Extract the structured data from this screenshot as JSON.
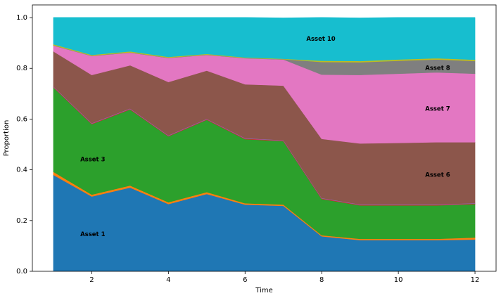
{
  "chart_data": {
    "type": "area",
    "stacked": true,
    "x": [
      1,
      2,
      3,
      4,
      5,
      6,
      7,
      8,
      9,
      10,
      11,
      12
    ],
    "xlabel": "Time",
    "ylabel": "Proportion",
    "xlim": [
      0.45,
      12.55
    ],
    "ylim": [
      0,
      1.05
    ],
    "xticks": [
      2,
      4,
      6,
      8,
      10,
      12
    ],
    "yticks": [
      0.0,
      0.2,
      0.4,
      0.6,
      0.8,
      1.0
    ],
    "xtick_labels": [
      "2",
      "4",
      "6",
      "8",
      "10",
      "12"
    ],
    "ytick_labels": [
      "0.0",
      "0.2",
      "0.4",
      "0.6",
      "0.8",
      "1.0"
    ],
    "grid": false,
    "series": [
      {
        "color": "#1f77b4",
        "values": [
          0.38,
          0.295,
          0.33,
          0.265,
          0.305,
          0.263,
          0.258,
          0.138,
          0.123,
          0.123,
          0.123,
          0.125
        ]
      },
      {
        "color": "#ff7f0e",
        "values": [
          0.012,
          0.007,
          0.008,
          0.007,
          0.007,
          0.005,
          0.005,
          0.004,
          0.005,
          0.005,
          0.005,
          0.008
        ]
      },
      {
        "color": "#2ca02c",
        "values": [
          0.333,
          0.278,
          0.3,
          0.26,
          0.285,
          0.253,
          0.25,
          0.143,
          0.132,
          0.132,
          0.132,
          0.132
        ]
      },
      {
        "color": "#d62728",
        "values": [
          0.002,
          0.002,
          0.002,
          0.002,
          0.002,
          0.002,
          0.002,
          0.002,
          0.002,
          0.002,
          0.002,
          0.002
        ]
      },
      {
        "color": "#9467bd",
        "values": [
          0.002,
          0.002,
          0.002,
          0.002,
          0.002,
          0.002,
          0.002,
          0.002,
          0.002,
          0.002,
          0.002,
          0.002
        ]
      },
      {
        "color": "#8c564b",
        "values": [
          0.138,
          0.19,
          0.17,
          0.21,
          0.19,
          0.212,
          0.215,
          0.233,
          0.24,
          0.242,
          0.245,
          0.24
        ]
      },
      {
        "color": "#e377c2",
        "values": [
          0.023,
          0.075,
          0.05,
          0.095,
          0.062,
          0.103,
          0.103,
          0.253,
          0.27,
          0.273,
          0.275,
          0.27
        ]
      },
      {
        "color": "#7f7f7f",
        "values": [
          0.001,
          0.001,
          0.001,
          0.001,
          0.001,
          0.001,
          0.001,
          0.05,
          0.05,
          0.051,
          0.051,
          0.05
        ]
      },
      {
        "color": "#bcbd22",
        "values": [
          0.004,
          0.003,
          0.004,
          0.003,
          0.003,
          0.002,
          0.002,
          0.005,
          0.005,
          0.005,
          0.005,
          0.005
        ]
      },
      {
        "color": "#17becf",
        "values": [
          0.105,
          0.147,
          0.133,
          0.155,
          0.143,
          0.157,
          0.16,
          0.17,
          0.169,
          0.165,
          0.16,
          0.166
        ]
      }
    ],
    "annotations": [
      {
        "text": "Asset 1",
        "x": 1.7,
        "y": 0.145
      },
      {
        "text": "Asset 3",
        "x": 1.7,
        "y": 0.44
      },
      {
        "text": "Asset 6",
        "x": 10.7,
        "y": 0.38
      },
      {
        "text": "Asset 7",
        "x": 10.7,
        "y": 0.64
      },
      {
        "text": "Asset 8",
        "x": 10.7,
        "y": 0.8
      },
      {
        "text": "Asset 10",
        "x": 7.6,
        "y": 0.915
      }
    ]
  }
}
